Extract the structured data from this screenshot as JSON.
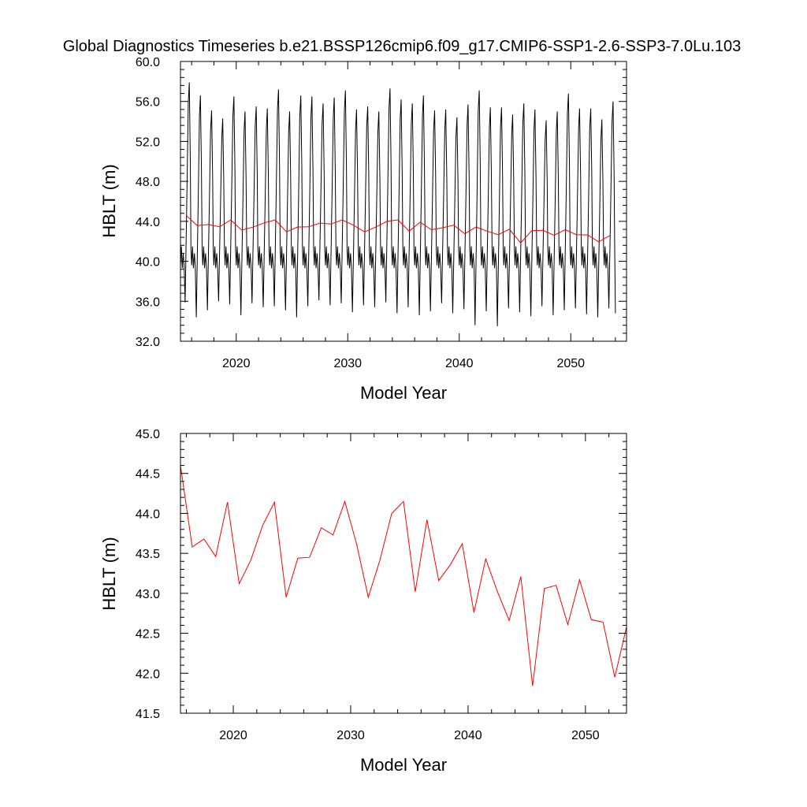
{
  "title": "Global Diagnostics Timeseries b.e21.BSSP126cmip6.f09_g17.CMIP6-SSP1-2.6-SSP3-7.0Lu.103",
  "colors": {
    "monthly": "#000000",
    "annual": "#ff0000",
    "axes": "#000000"
  },
  "chart_data": [
    {
      "type": "line",
      "xlabel": "Model Year",
      "ylabel": "HBLT (m)",
      "xlim": [
        2015,
        2055
      ],
      "ylim": [
        32.0,
        60.0
      ],
      "xticks": [
        2020,
        2030,
        2040,
        2050
      ],
      "xtick_labels": [
        "2020",
        "2030",
        "2040",
        "2050"
      ],
      "yticks": [
        32.0,
        36.0,
        40.0,
        44.0,
        48.0,
        52.0,
        56.0,
        60.0
      ],
      "ytick_labels": [
        "32.0",
        "36.0",
        "40.0",
        "44.0",
        "48.0",
        "52.0",
        "56.0",
        "60.0"
      ],
      "grid": false,
      "series": [
        {
          "color": "#000000",
          "resolution": "monthly",
          "monthly_cycle_note": "",
          "year_start": 2015,
          "peaks": [
            57.9,
            56.6,
            55.1,
            54.3,
            56.5,
            55.0,
            55.5,
            55.3,
            57.2,
            55.0,
            56.6,
            56.5,
            55.8,
            56.4,
            57.1,
            55.2,
            55.5,
            55.0,
            57.3,
            56.2,
            55.8,
            56.6,
            55.1,
            55.2,
            54.4,
            55.7,
            57.1,
            55.4,
            55.4,
            54.7,
            55.8,
            55.2,
            54.1,
            55.0,
            56.8,
            55.3,
            55.3,
            54.2,
            56.0
          ],
          "troughs": [
            35.9,
            34.4,
            35.1,
            36.0,
            35.7,
            34.6,
            35.8,
            35.4,
            35.5,
            35.1,
            34.4,
            35.5,
            36.1,
            35.6,
            35.8,
            34.9,
            35.6,
            35.4,
            35.9,
            34.8,
            35.4,
            34.6,
            35.0,
            35.8,
            34.8,
            35.2,
            33.6,
            35.0,
            33.5,
            35.3,
            34.9,
            34.5,
            35.5,
            34.6,
            35.1,
            35.3,
            34.7,
            34.4,
            35.3
          ]
        },
        {
          "color": "#ff0000",
          "resolution": "annual",
          "x": [
            2015.5,
            2016.5,
            2017.5,
            2018.5,
            2019.5,
            2020.5,
            2021.5,
            2022.5,
            2023.5,
            2024.5,
            2025.5,
            2026.5,
            2027.5,
            2028.5,
            2029.5,
            2030.5,
            2031.5,
            2032.5,
            2033.5,
            2034.5,
            2035.5,
            2036.5,
            2037.5,
            2038.5,
            2039.5,
            2040.5,
            2041.5,
            2042.5,
            2043.5,
            2044.5,
            2045.5,
            2046.5,
            2047.5,
            2048.5,
            2049.5,
            2050.5,
            2051.5,
            2052.5,
            2053.5
          ],
          "y": [
            44.6,
            43.58,
            43.68,
            43.46,
            44.14,
            43.12,
            43.42,
            43.85,
            44.14,
            42.95,
            43.44,
            43.45,
            43.82,
            43.73,
            44.15,
            43.62,
            42.95,
            43.42,
            44.0,
            44.15,
            43.02,
            43.92,
            43.16,
            43.36,
            43.62,
            42.76,
            43.43,
            43.02,
            42.66,
            43.21,
            41.84,
            43.06,
            43.1,
            42.61,
            43.17,
            42.67,
            42.64,
            41.95,
            42.58
          ]
        }
      ]
    },
    {
      "type": "line",
      "xlabel": "Model Year",
      "ylabel": "HBLT (m)",
      "xlim": [
        2015.5,
        2053.5
      ],
      "ylim": [
        41.5,
        45.0
      ],
      "xticks": [
        2020,
        2030,
        2040,
        2050
      ],
      "xtick_labels": [
        "2020",
        "2030",
        "2040",
        "2050"
      ],
      "yticks": [
        41.5,
        42.0,
        42.5,
        43.0,
        43.5,
        44.0,
        44.5,
        45.0
      ],
      "ytick_labels": [
        "41.5",
        "42.0",
        "42.5",
        "43.0",
        "43.5",
        "44.0",
        "44.5",
        "45.0"
      ],
      "grid": false,
      "series": [
        {
          "color": "#ff0000",
          "resolution": "annual",
          "x": [
            2015.5,
            2016.5,
            2017.5,
            2018.5,
            2019.5,
            2020.5,
            2021.5,
            2022.5,
            2023.5,
            2024.5,
            2025.5,
            2026.5,
            2027.5,
            2028.5,
            2029.5,
            2030.5,
            2031.5,
            2032.5,
            2033.5,
            2034.5,
            2035.5,
            2036.5,
            2037.5,
            2038.5,
            2039.5,
            2040.5,
            2041.5,
            2042.5,
            2043.5,
            2044.5,
            2045.5,
            2046.5,
            2047.5,
            2048.5,
            2049.5,
            2050.5,
            2051.5,
            2052.5,
            2053.5
          ],
          "y": [
            44.6,
            43.58,
            43.68,
            43.46,
            44.14,
            43.12,
            43.42,
            43.85,
            44.14,
            42.95,
            43.44,
            43.45,
            43.82,
            43.73,
            44.15,
            43.62,
            42.95,
            43.42,
            44.0,
            44.15,
            43.02,
            43.92,
            43.16,
            43.36,
            43.62,
            42.76,
            43.43,
            43.02,
            42.66,
            43.21,
            41.84,
            43.06,
            43.1,
            42.61,
            43.17,
            42.67,
            42.64,
            41.95,
            42.58
          ]
        }
      ]
    }
  ]
}
